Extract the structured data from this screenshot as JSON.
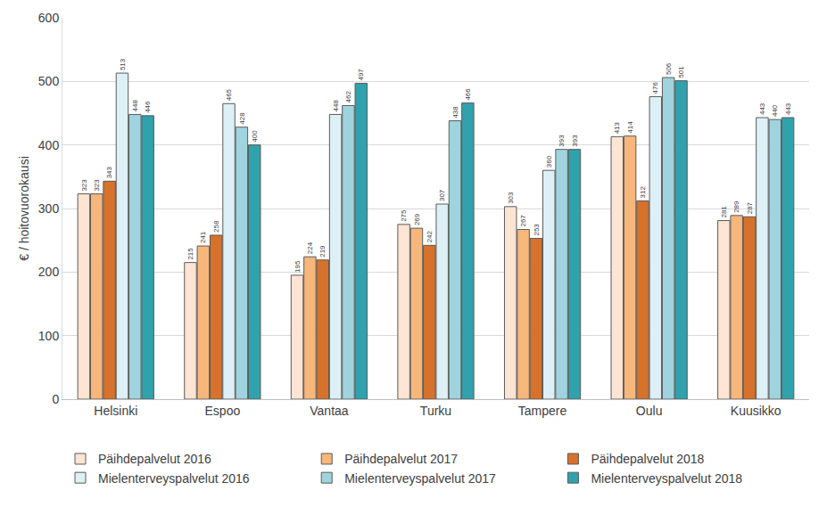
{
  "chart_data": {
    "type": "bar",
    "y_label": "€ / hoitovuorokausi",
    "categories": [
      "Helsinki",
      "Espoo",
      "Vantaa",
      "Turku",
      "Tampere",
      "Oulu",
      "Kuusikko"
    ],
    "series": [
      {
        "name": "Päihdepalvelut 2016",
        "color": "#fde4d3",
        "values": [
          323,
          215,
          195,
          275,
          303,
          413,
          281
        ]
      },
      {
        "name": "Päihdepalvelut 2017",
        "color": "#f7b77b",
        "values": [
          323,
          241,
          224,
          269,
          267,
          414,
          289
        ]
      },
      {
        "name": "Päihdepalvelut 2018",
        "color": "#d6722b",
        "values": [
          343,
          258,
          219,
          242,
          253,
          312,
          287
        ]
      },
      {
        "name": "Mielenterveyspalvelut 2016",
        "color": "#ddf0f5",
        "values": [
          513,
          465,
          448,
          307,
          360,
          476,
          443
        ]
      },
      {
        "name": "Mielenterveyspalvelut 2017",
        "color": "#9fd4df",
        "values": [
          448,
          428,
          462,
          438,
          393,
          506,
          440
        ]
      },
      {
        "name": "Mielenterveyspalvelut 2018",
        "color": "#2fa2ac",
        "values": [
          446,
          400,
          497,
          466,
          393,
          501,
          443
        ]
      }
    ],
    "ylim": [
      0,
      600
    ],
    "yticks": [
      0,
      100,
      200,
      300,
      400,
      500,
      600
    ],
    "grid": true,
    "legend": "bottom",
    "data_labels": true
  }
}
